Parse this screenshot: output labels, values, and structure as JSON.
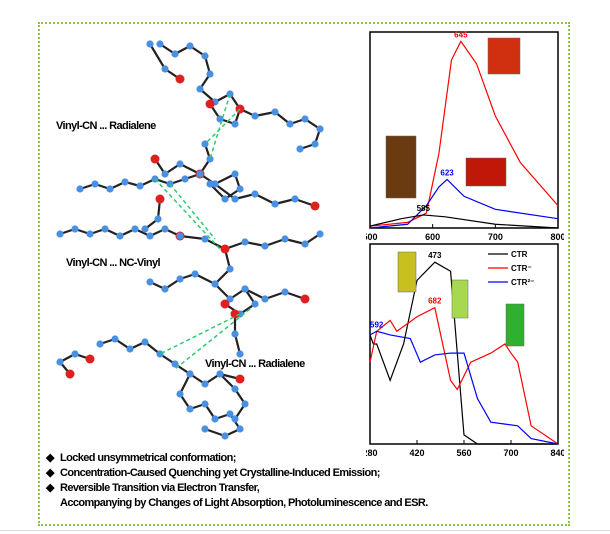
{
  "labels": {
    "interaction_1": "Vinyl-CN ... Radialene",
    "interaction_2": "Vinyl-CN ... NC-Vinyl",
    "interaction_3": "Vinyl-CN ... Radialene"
  },
  "bullets": [
    "Locked unsymmetrical conformation;",
    "Concentration-Caused Quenching yet Crystalline-Induced Emission;",
    "Reversible Transition via Electron Transfer,",
    "Accompanying by Changes of Light Absorption, Photoluminescence and ESR."
  ],
  "bullet_icon": "diamond-icon",
  "colors": {
    "frame": "#8cc63f",
    "atom_c": "#4a90e2",
    "atom_o": "#e02020",
    "hbond": "#2ecc71"
  },
  "chart_data": [
    {
      "type": "line",
      "xlim": [
        500,
        800
      ],
      "ylim": [
        0,
        1.05
      ],
      "xticks": [
        "500",
        "600",
        "700",
        "800"
      ],
      "grid": false,
      "series": [
        {
          "color": "#ff0000",
          "peak_label": "645",
          "x": [
            500,
            560,
            590,
            610,
            630,
            645,
            670,
            700,
            740,
            800
          ],
          "y": [
            0.01,
            0.03,
            0.08,
            0.4,
            0.9,
            1.0,
            0.88,
            0.6,
            0.35,
            0.12
          ]
        },
        {
          "color": "#0000ff",
          "peak_label": "623",
          "x": [
            500,
            560,
            590,
            610,
            623,
            650,
            700,
            800
          ],
          "y": [
            0,
            0.02,
            0.12,
            0.22,
            0.26,
            0.17,
            0.1,
            0.05
          ]
        },
        {
          "color": "#000000",
          "peak_label": "585",
          "x": [
            500,
            550,
            585,
            620,
            700,
            800
          ],
          "y": [
            0.01,
            0.05,
            0.07,
            0.06,
            0.02,
            0
          ]
        }
      ]
    },
    {
      "type": "line",
      "xlim": [
        280,
        840
      ],
      "ylim": [
        0,
        1.1
      ],
      "xticks": [
        "280",
        "420",
        "560",
        "700",
        "840"
      ],
      "grid": false,
      "legend": "top-right",
      "series": [
        {
          "name": "CTR",
          "color": "#000000",
          "peak_label": "473",
          "x": [
            280,
            290,
            300,
            340,
            380,
            420,
            473,
            520,
            540,
            560,
            600,
            840
          ],
          "y": [
            0.6,
            0.55,
            0.55,
            0.35,
            0.55,
            0.9,
            1.0,
            0.95,
            0.5,
            0.05,
            0,
            0
          ]
        },
        {
          "name": "CTR⁻",
          "color": "#ff0000",
          "peak_label": "682",
          "x": [
            280,
            300,
            340,
            360,
            420,
            473,
            520,
            540,
            580,
            640,
            682,
            700,
            720,
            760,
            840
          ],
          "y": [
            0.45,
            0.62,
            0.68,
            0.62,
            0.7,
            0.75,
            0.35,
            0.3,
            0.45,
            0.5,
            0.55,
            0.5,
            0.45,
            0.1,
            0
          ]
        },
        {
          "name": "CTR²⁻",
          "color": "#0000ff",
          "peak_label": "592",
          "x": [
            280,
            300,
            340,
            400,
            430,
            473,
            520,
            560,
            600,
            640,
            680,
            720,
            760,
            840
          ],
          "y": [
            0.6,
            0.62,
            0.6,
            0.58,
            0.45,
            0.49,
            0.5,
            0.5,
            0.25,
            0.12,
            0.11,
            0.1,
            0.03,
            0
          ]
        }
      ]
    }
  ]
}
